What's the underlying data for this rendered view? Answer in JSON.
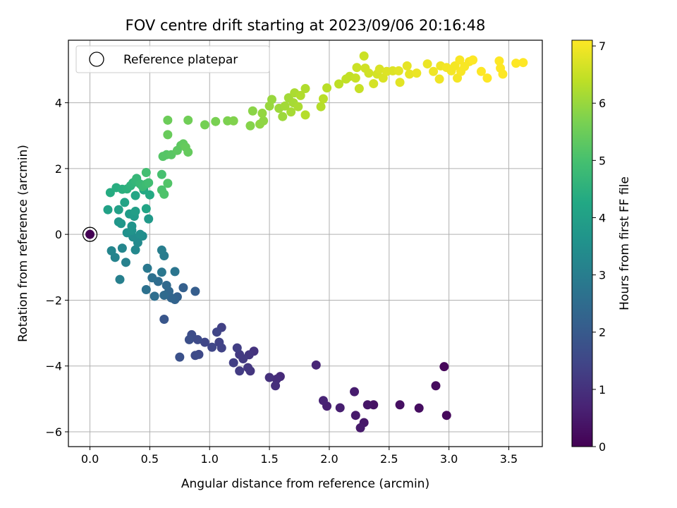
{
  "chart_data": {
    "type": "scatter",
    "title": "FOV centre drift starting at 2023/09/06 20:16:48",
    "xlabel": "Angular distance from reference (arcmin)",
    "ylabel": "Rotation from reference (arcmin)",
    "xlim": [
      -0.18,
      3.78
    ],
    "ylim": [
      -6.45,
      5.9
    ],
    "xticks": [
      0.0,
      0.5,
      1.0,
      1.5,
      2.0,
      2.5,
      3.0,
      3.5
    ],
    "xtick_labels": [
      "0.0",
      "0.5",
      "1.0",
      "1.5",
      "2.0",
      "2.5",
      "3.0",
      "3.5"
    ],
    "yticks": [
      -6,
      -4,
      -2,
      0,
      2,
      4
    ],
    "ytick_labels": [
      "−6",
      "−4",
      "−2",
      "0",
      "2",
      "4"
    ],
    "grid": true,
    "legend": {
      "location": "upper left",
      "entries": [
        "Reference platepar"
      ]
    },
    "reference_point": {
      "x": 0.0,
      "y": 0.0
    },
    "colorbar": {
      "label": "Hours from first FF file",
      "range": [
        0,
        7.1
      ],
      "ticks": [
        0,
        1,
        2,
        3,
        4,
        5,
        6,
        7
      ],
      "tick_labels": [
        "0",
        "1",
        "2",
        "3",
        "4",
        "5",
        "6",
        "7"
      ],
      "colormap": "viridis"
    },
    "points": [
      {
        "x": 2.96,
        "y": -4.02,
        "t": 0.1
      },
      {
        "x": 2.98,
        "y": -5.5,
        "t": 0.15
      },
      {
        "x": 2.89,
        "y": -4.6,
        "t": 0.2
      },
      {
        "x": 2.75,
        "y": -5.28,
        "t": 0.25
      },
      {
        "x": 2.59,
        "y": -5.18,
        "t": 0.3
      },
      {
        "x": 2.37,
        "y": -5.18,
        "t": 0.35
      },
      {
        "x": 2.32,
        "y": -5.18,
        "t": 0.4
      },
      {
        "x": 2.29,
        "y": -5.72,
        "t": 0.45
      },
      {
        "x": 2.26,
        "y": -5.88,
        "t": 0.5
      },
      {
        "x": 2.22,
        "y": -5.5,
        "t": 0.5
      },
      {
        "x": 2.21,
        "y": -4.78,
        "t": 0.55
      },
      {
        "x": 2.09,
        "y": -5.27,
        "t": 0.6
      },
      {
        "x": 1.98,
        "y": -5.22,
        "t": 0.65
      },
      {
        "x": 1.95,
        "y": -5.05,
        "t": 0.7
      },
      {
        "x": 1.89,
        "y": -3.97,
        "t": 0.75
      },
      {
        "x": 1.59,
        "y": -4.32,
        "t": 0.85
      },
      {
        "x": 1.56,
        "y": -4.4,
        "t": 0.9
      },
      {
        "x": 1.55,
        "y": -4.6,
        "t": 0.95
      },
      {
        "x": 1.5,
        "y": -4.35,
        "t": 1.0
      },
      {
        "x": 1.37,
        "y": -3.55,
        "t": 1.05
      },
      {
        "x": 1.33,
        "y": -3.66,
        "t": 1.1
      },
      {
        "x": 1.34,
        "y": -4.15,
        "t": 1.1
      },
      {
        "x": 1.32,
        "y": -4.05,
        "t": 1.15
      },
      {
        "x": 1.28,
        "y": -3.78,
        "t": 1.2
      },
      {
        "x": 1.25,
        "y": -3.65,
        "t": 1.2
      },
      {
        "x": 1.25,
        "y": -4.15,
        "t": 1.25
      },
      {
        "x": 1.23,
        "y": -3.45,
        "t": 1.3
      },
      {
        "x": 1.2,
        "y": -3.9,
        "t": 1.3
      },
      {
        "x": 1.1,
        "y": -2.83,
        "t": 1.35
      },
      {
        "x": 1.1,
        "y": -3.45,
        "t": 1.4
      },
      {
        "x": 1.08,
        "y": -3.28,
        "t": 1.4
      },
      {
        "x": 1.06,
        "y": -2.97,
        "t": 1.45
      },
      {
        "x": 1.02,
        "y": -3.43,
        "t": 1.5
      },
      {
        "x": 0.96,
        "y": -3.28,
        "t": 1.5
      },
      {
        "x": 0.91,
        "y": -3.65,
        "t": 1.55
      },
      {
        "x": 0.9,
        "y": -3.2,
        "t": 1.6
      },
      {
        "x": 0.88,
        "y": -3.68,
        "t": 1.6
      },
      {
        "x": 0.85,
        "y": -3.05,
        "t": 1.65
      },
      {
        "x": 0.83,
        "y": -3.2,
        "t": 1.7
      },
      {
        "x": 0.75,
        "y": -3.73,
        "t": 1.75
      },
      {
        "x": 0.62,
        "y": -2.58,
        "t": 1.9
      },
      {
        "x": 0.88,
        "y": -1.73,
        "t": 2.1
      },
      {
        "x": 0.78,
        "y": -1.62,
        "t": 2.15
      },
      {
        "x": 0.73,
        "y": -1.9,
        "t": 2.2
      },
      {
        "x": 0.71,
        "y": -1.98,
        "t": 2.25
      },
      {
        "x": 0.68,
        "y": -1.93,
        "t": 2.3
      },
      {
        "x": 0.66,
        "y": -1.73,
        "t": 2.35
      },
      {
        "x": 0.64,
        "y": -1.55,
        "t": 2.4
      },
      {
        "x": 0.62,
        "y": -1.85,
        "t": 2.45
      },
      {
        "x": 0.57,
        "y": -1.43,
        "t": 2.5
      },
      {
        "x": 0.54,
        "y": -1.88,
        "t": 2.55
      },
      {
        "x": 0.52,
        "y": -1.32,
        "t": 2.6
      },
      {
        "x": 0.47,
        "y": -1.68,
        "t": 2.65
      },
      {
        "x": 0.71,
        "y": -1.13,
        "t": 2.75
      },
      {
        "x": 0.6,
        "y": -1.15,
        "t": 2.8
      },
      {
        "x": 0.48,
        "y": -1.03,
        "t": 2.85
      },
      {
        "x": 0.62,
        "y": -0.65,
        "t": 2.95
      },
      {
        "x": 0.6,
        "y": -0.48,
        "t": 3.0
      },
      {
        "x": 0.25,
        "y": -1.37,
        "t": 3.05
      },
      {
        "x": 0.3,
        "y": -0.85,
        "t": 3.1
      },
      {
        "x": 0.21,
        "y": -0.7,
        "t": 3.15
      },
      {
        "x": 0.18,
        "y": -0.5,
        "t": 3.2
      },
      {
        "x": 0.27,
        "y": -0.42,
        "t": 3.25
      },
      {
        "x": 0.38,
        "y": -0.47,
        "t": 3.3
      },
      {
        "x": 0.4,
        "y": -0.25,
        "t": 3.35
      },
      {
        "x": 0.36,
        "y": -0.08,
        "t": 3.4
      },
      {
        "x": 0.44,
        "y": -0.05,
        "t": 3.45
      },
      {
        "x": 0.42,
        "y": 0.0,
        "t": 3.5
      },
      {
        "x": 0.31,
        "y": 0.05,
        "t": 3.55
      },
      {
        "x": 0.35,
        "y": 0.12,
        "t": 3.6
      },
      {
        "x": 0.35,
        "y": 0.25,
        "t": 3.65
      },
      {
        "x": 0.24,
        "y": 0.38,
        "t": 3.7
      },
      {
        "x": 0.26,
        "y": 0.33,
        "t": 3.75
      },
      {
        "x": 0.49,
        "y": 0.47,
        "t": 3.8
      },
      {
        "x": 0.37,
        "y": 0.55,
        "t": 3.85
      },
      {
        "x": 0.33,
        "y": 0.62,
        "t": 3.9
      },
      {
        "x": 0.38,
        "y": 0.7,
        "t": 3.95
      },
      {
        "x": 0.24,
        "y": 0.75,
        "t": 4.0
      },
      {
        "x": 0.15,
        "y": 0.75,
        "t": 4.05
      },
      {
        "x": 0.29,
        "y": 0.97,
        "t": 4.1
      },
      {
        "x": 0.47,
        "y": 0.78,
        "t": 4.15
      },
      {
        "x": 0.38,
        "y": 1.18,
        "t": 4.2
      },
      {
        "x": 0.45,
        "y": 1.35,
        "t": 4.25
      },
      {
        "x": 0.5,
        "y": 1.2,
        "t": 4.3
      },
      {
        "x": 0.17,
        "y": 1.27,
        "t": 4.35
      },
      {
        "x": 0.22,
        "y": 1.42,
        "t": 4.4
      },
      {
        "x": 0.27,
        "y": 1.37,
        "t": 4.45
      },
      {
        "x": 0.31,
        "y": 1.38,
        "t": 4.5
      },
      {
        "x": 0.34,
        "y": 1.48,
        "t": 4.55
      },
      {
        "x": 0.36,
        "y": 1.57,
        "t": 4.6
      },
      {
        "x": 0.38,
        "y": 1.62,
        "t": 4.65
      },
      {
        "x": 0.39,
        "y": 1.7,
        "t": 4.7
      },
      {
        "x": 0.42,
        "y": 1.53,
        "t": 4.75
      },
      {
        "x": 0.44,
        "y": 1.45,
        "t": 4.8
      },
      {
        "x": 0.47,
        "y": 1.53,
        "t": 4.85
      },
      {
        "x": 0.49,
        "y": 1.57,
        "t": 4.9
      },
      {
        "x": 0.47,
        "y": 1.88,
        "t": 4.95
      },
      {
        "x": 0.6,
        "y": 1.82,
        "t": 5.0
      },
      {
        "x": 0.6,
        "y": 1.35,
        "t": 5.05
      },
      {
        "x": 0.62,
        "y": 1.22,
        "t": 5.1
      },
      {
        "x": 0.65,
        "y": 1.55,
        "t": 5.15
      },
      {
        "x": 0.61,
        "y": 2.37,
        "t": 5.2
      },
      {
        "x": 0.64,
        "y": 2.42,
        "t": 5.2
      },
      {
        "x": 0.68,
        "y": 2.42,
        "t": 5.25
      },
      {
        "x": 0.73,
        "y": 2.55,
        "t": 5.3
      },
      {
        "x": 0.76,
        "y": 2.7,
        "t": 5.3
      },
      {
        "x": 0.78,
        "y": 2.75,
        "t": 5.35
      },
      {
        "x": 0.82,
        "y": 2.5,
        "t": 5.4
      },
      {
        "x": 0.8,
        "y": 2.65,
        "t": 5.4
      },
      {
        "x": 0.65,
        "y": 3.03,
        "t": 5.45
      },
      {
        "x": 0.65,
        "y": 3.47,
        "t": 5.5
      },
      {
        "x": 0.82,
        "y": 3.47,
        "t": 5.55
      },
      {
        "x": 0.96,
        "y": 3.33,
        "t": 5.6
      },
      {
        "x": 1.05,
        "y": 3.43,
        "t": 5.65
      },
      {
        "x": 1.15,
        "y": 3.45,
        "t": 5.7
      },
      {
        "x": 1.2,
        "y": 3.45,
        "t": 5.75
      },
      {
        "x": 1.34,
        "y": 3.3,
        "t": 5.8
      },
      {
        "x": 1.36,
        "y": 3.75,
        "t": 5.85
      },
      {
        "x": 1.42,
        "y": 3.35,
        "t": 5.9
      },
      {
        "x": 1.45,
        "y": 3.45,
        "t": 5.9
      },
      {
        "x": 1.44,
        "y": 3.68,
        "t": 5.95
      },
      {
        "x": 1.5,
        "y": 3.9,
        "t": 6.0
      },
      {
        "x": 1.52,
        "y": 4.1,
        "t": 6.0
      },
      {
        "x": 1.58,
        "y": 3.83,
        "t": 6.05
      },
      {
        "x": 1.61,
        "y": 3.58,
        "t": 6.05
      },
      {
        "x": 1.63,
        "y": 3.9,
        "t": 6.1
      },
      {
        "x": 1.66,
        "y": 4.15,
        "t": 6.1
      },
      {
        "x": 1.68,
        "y": 3.72,
        "t": 6.15
      },
      {
        "x": 1.7,
        "y": 4.0,
        "t": 6.15
      },
      {
        "x": 1.71,
        "y": 4.3,
        "t": 6.2
      },
      {
        "x": 1.74,
        "y": 3.88,
        "t": 6.2
      },
      {
        "x": 1.76,
        "y": 4.22,
        "t": 6.25
      },
      {
        "x": 1.8,
        "y": 4.43,
        "t": 6.25
      },
      {
        "x": 1.8,
        "y": 3.63,
        "t": 6.3
      },
      {
        "x": 1.93,
        "y": 3.88,
        "t": 6.3
      },
      {
        "x": 1.95,
        "y": 4.12,
        "t": 6.35
      },
      {
        "x": 1.98,
        "y": 4.45,
        "t": 6.35
      },
      {
        "x": 2.08,
        "y": 4.57,
        "t": 6.4
      },
      {
        "x": 2.14,
        "y": 4.72,
        "t": 6.45
      },
      {
        "x": 2.17,
        "y": 4.8,
        "t": 6.45
      },
      {
        "x": 2.22,
        "y": 4.75,
        "t": 6.5
      },
      {
        "x": 2.25,
        "y": 4.43,
        "t": 6.5
      },
      {
        "x": 2.23,
        "y": 5.07,
        "t": 6.55
      },
      {
        "x": 2.29,
        "y": 5.42,
        "t": 6.55
      },
      {
        "x": 2.3,
        "y": 5.05,
        "t": 6.6
      },
      {
        "x": 2.33,
        "y": 4.9,
        "t": 6.6
      },
      {
        "x": 2.37,
        "y": 4.58,
        "t": 6.65
      },
      {
        "x": 2.4,
        "y": 4.87,
        "t": 6.65
      },
      {
        "x": 2.42,
        "y": 5.02,
        "t": 6.7
      },
      {
        "x": 2.45,
        "y": 4.75,
        "t": 6.7
      },
      {
        "x": 2.48,
        "y": 4.95,
        "t": 6.75
      },
      {
        "x": 2.53,
        "y": 4.97,
        "t": 6.75
      },
      {
        "x": 2.58,
        "y": 4.97,
        "t": 6.8
      },
      {
        "x": 2.59,
        "y": 4.62,
        "t": 6.8
      },
      {
        "x": 2.65,
        "y": 5.12,
        "t": 6.85
      },
      {
        "x": 2.67,
        "y": 4.87,
        "t": 6.85
      },
      {
        "x": 2.73,
        "y": 4.9,
        "t": 6.9
      },
      {
        "x": 2.82,
        "y": 5.18,
        "t": 6.9
      },
      {
        "x": 2.87,
        "y": 4.95,
        "t": 6.95
      },
      {
        "x": 2.92,
        "y": 4.72,
        "t": 6.95
      },
      {
        "x": 2.93,
        "y": 5.12,
        "t": 6.95
      },
      {
        "x": 2.98,
        "y": 5.07,
        "t": 7.0
      },
      {
        "x": 3.02,
        "y": 4.97,
        "t": 7.0
      },
      {
        "x": 3.05,
        "y": 5.12,
        "t": 7.0
      },
      {
        "x": 3.07,
        "y": 4.75,
        "t": 7.0
      },
      {
        "x": 3.09,
        "y": 5.3,
        "t": 7.05
      },
      {
        "x": 3.1,
        "y": 4.95,
        "t": 7.05
      },
      {
        "x": 3.13,
        "y": 5.1,
        "t": 7.05
      },
      {
        "x": 3.17,
        "y": 5.25,
        "t": 7.05
      },
      {
        "x": 3.2,
        "y": 5.3,
        "t": 7.1
      },
      {
        "x": 3.27,
        "y": 4.95,
        "t": 7.1
      },
      {
        "x": 3.32,
        "y": 4.75,
        "t": 7.1
      },
      {
        "x": 3.42,
        "y": 5.27,
        "t": 7.1
      },
      {
        "x": 3.43,
        "y": 5.05,
        "t": 7.1
      },
      {
        "x": 3.45,
        "y": 4.87,
        "t": 7.1
      },
      {
        "x": 3.56,
        "y": 5.2,
        "t": 7.1
      },
      {
        "x": 3.62,
        "y": 5.22,
        "t": 7.1
      },
      {
        "x": 0.0,
        "y": 0.0,
        "t": 0.0
      }
    ]
  }
}
